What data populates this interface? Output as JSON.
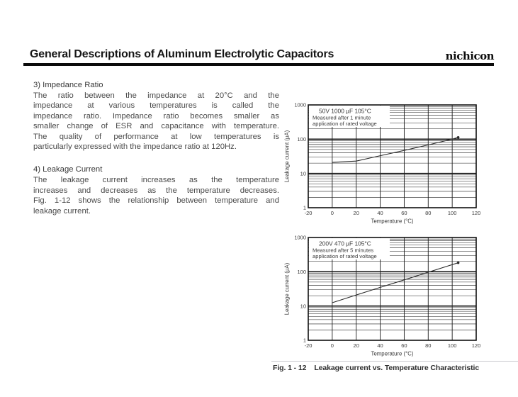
{
  "page": {
    "title": "General Descriptions of Aluminum Electrolytic Capacitors",
    "brand": "nichicon"
  },
  "sections": [
    {
      "heading": "3) Impedance Ratio",
      "lines": [
        "The ratio between the impedance at 20°C and the",
        "impedance at various temperatures is called the",
        "impedance ratio.  Impedance ratio becomes smaller as",
        "smaller change of ESR and capacitance with temperature.",
        "The quality of performance at low temperatures is",
        "particularly expressed with the impedance ratio at 120Hz."
      ]
    },
    {
      "heading": "4) Leakage Current",
      "lines": [
        "The leakage current increases as the temperature",
        "increases and decreases as the temperature decreases.",
        "Fig. 1-12 shows the relationship between temperature and",
        "leakage current."
      ]
    }
  ],
  "figure": {
    "caption_label": "Fig. 1 - 12",
    "caption_text": "Leakage current vs. Temperature Characteristic"
  },
  "chart_data": [
    {
      "type": "line",
      "title": "50V 1000 µF 105°C",
      "annotation_lines": [
        "Measured after 1 minute",
        "application of rated voltage"
      ],
      "xlabel": "Temperature (°C)",
      "ylabel": "Leakage current (µA)",
      "x_ticks": [
        -20,
        0,
        20,
        40,
        60,
        80,
        100,
        120
      ],
      "y_ticks": [
        1,
        10,
        100,
        1000
      ],
      "xlim": [
        -20,
        120
      ],
      "ylim": [
        1,
        1000
      ],
      "y_scale": "log",
      "grid": true,
      "legend": "none",
      "series": [
        {
          "name": "Leakage current vs temperature (50V 1000µF)",
          "points": [
            [
              0,
              21
            ],
            [
              20,
              23
            ],
            [
              40,
              33
            ],
            [
              60,
              47
            ],
            [
              80,
              68
            ],
            [
              100,
              100
            ],
            [
              105,
              113
            ]
          ],
          "end_marker": true
        }
      ]
    },
    {
      "type": "line",
      "title": "200V 470 µF 105°C",
      "annotation_lines": [
        "Measured after 5 minutes",
        "application of rated voltage"
      ],
      "xlabel": "Temperature (°C)",
      "ylabel": "Leakage current (µA)",
      "x_ticks": [
        -20,
        0,
        20,
        40,
        60,
        80,
        100,
        120
      ],
      "y_ticks": [
        1,
        10,
        100,
        1000
      ],
      "xlim": [
        -20,
        120
      ],
      "ylim": [
        1,
        1000
      ],
      "y_scale": "log",
      "grid": true,
      "legend": "none",
      "series": [
        {
          "name": "Leakage current vs temperature (200V 470µF)",
          "points": [
            [
              0,
              12.5
            ],
            [
              20,
              21
            ],
            [
              40,
              35
            ],
            [
              60,
              58
            ],
            [
              80,
              97
            ],
            [
              100,
              161
            ],
            [
              105,
              183
            ]
          ],
          "end_marker": true
        }
      ]
    }
  ],
  "colors": {
    "ink": "#1c1c1c",
    "border": "#111111",
    "data_line": "#2a2a2a",
    "chart_text": "#3a3a3a",
    "rule": "#0a0a0a"
  }
}
